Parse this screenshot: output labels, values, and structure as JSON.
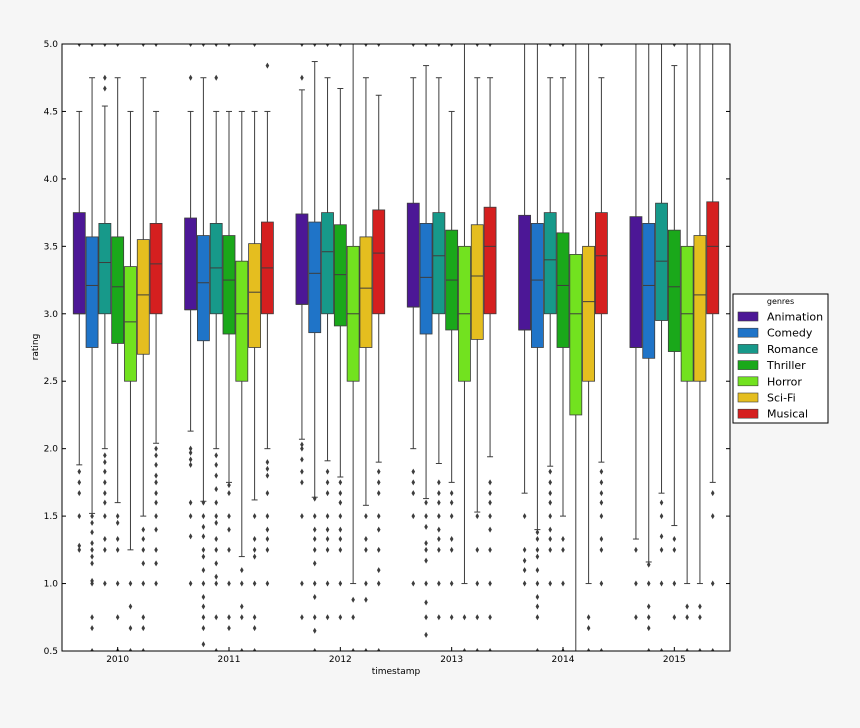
{
  "chart_data": {
    "type": "boxplot",
    "xlabel": "timestamp",
    "ylabel": "rating",
    "ylim": [
      0.5,
      5.0
    ],
    "yticks": [
      "0.5",
      "1.0",
      "1.5",
      "2.0",
      "2.5",
      "3.0",
      "3.5",
      "4.0",
      "4.5",
      "5.0"
    ],
    "categories": [
      "2010",
      "2011",
      "2012",
      "2013",
      "2014",
      "2015"
    ],
    "legend": {
      "title": "genres",
      "position": "right",
      "entries": [
        "Animation",
        "Comedy",
        "Romance",
        "Thriller",
        "Horror",
        "Sci-Fi",
        "Musical"
      ]
    },
    "colors": [
      "#4c1796",
      "#1f74c8",
      "#17998a",
      "#1aa81a",
      "#72e21f",
      "#e5be1f",
      "#d51f1f"
    ],
    "series": [
      {
        "name": "Animation",
        "boxes": [
          {
            "q1": 3.0,
            "median": 3.0,
            "q3": 3.75,
            "whislo": 1.88,
            "whishi": 4.5,
            "fliers": [
              1.83,
              1.75,
              1.67,
              1.5,
              1.28,
              1.25,
              5.0
            ]
          },
          {
            "q1": 3.03,
            "median": 3.03,
            "q3": 3.71,
            "whislo": 2.13,
            "whishi": 4.5,
            "fliers": [
              2.0,
              1.97,
              1.92,
              1.88,
              1.6,
              1.5,
              1.35,
              1.0,
              4.75,
              5.0
            ]
          },
          {
            "q1": 3.07,
            "median": 3.07,
            "q3": 3.74,
            "whislo": 2.07,
            "whishi": 4.66,
            "fliers": [
              2.03,
              2.0,
              1.92,
              1.83,
              1.75,
              1.5,
              1.0,
              0.75,
              4.75,
              5.0
            ]
          },
          {
            "q1": 3.05,
            "median": 3.05,
            "q3": 3.82,
            "whislo": 2.0,
            "whishi": 4.75,
            "fliers": [
              1.83,
              1.75,
              1.67,
              1.5,
              1.0,
              5.0
            ]
          },
          {
            "q1": 2.88,
            "median": 2.88,
            "q3": 3.73,
            "whislo": 1.67,
            "whishi": 5.0,
            "fliers": [
              1.5,
              1.25,
              1.17,
              1.1,
              1.0
            ]
          },
          {
            "q1": 2.75,
            "median": 2.75,
            "q3": 3.72,
            "whislo": 1.33,
            "whishi": 5.0,
            "fliers": [
              1.25,
              1.0,
              0.75
            ]
          }
        ]
      },
      {
        "name": "Comedy",
        "boxes": [
          {
            "q1": 2.75,
            "median": 3.21,
            "q3": 3.57,
            "whislo": 1.52,
            "whishi": 4.75,
            "fliers": [
              1.5,
              1.45,
              1.38,
              1.3,
              1.25,
              1.2,
              1.15,
              1.02,
              1.0,
              0.75,
              0.67,
              0.5,
              5.0
            ]
          },
          {
            "q1": 2.8,
            "median": 3.23,
            "q3": 3.58,
            "whislo": 1.61,
            "whishi": 4.75,
            "fliers": [
              1.6,
              1.5,
              1.42,
              1.35,
              1.25,
              1.2,
              1.1,
              1.0,
              0.9,
              0.83,
              0.75,
              0.67,
              0.55,
              5.0
            ]
          },
          {
            "q1": 2.86,
            "median": 3.3,
            "q3": 3.68,
            "whislo": 1.64,
            "whishi": 4.87,
            "fliers": [
              1.63,
              1.5,
              1.4,
              1.33,
              1.25,
              1.15,
              1.0,
              0.9,
              0.75,
              0.65,
              0.5,
              5.0
            ]
          },
          {
            "q1": 2.85,
            "median": 3.27,
            "q3": 3.67,
            "whislo": 1.63,
            "whishi": 4.84,
            "fliers": [
              1.6,
              1.5,
              1.42,
              1.3,
              1.25,
              1.17,
              1.0,
              0.86,
              0.75,
              0.62,
              5.0
            ]
          },
          {
            "q1": 2.75,
            "median": 3.25,
            "q3": 3.67,
            "whislo": 1.4,
            "whishi": 5.0,
            "fliers": [
              1.38,
              1.33,
              1.25,
              1.2,
              1.1,
              1.0,
              0.9,
              0.83,
              0.75,
              0.5
            ]
          },
          {
            "q1": 2.67,
            "median": 3.21,
            "q3": 3.67,
            "whislo": 1.16,
            "whishi": 5.0,
            "fliers": [
              1.14,
              1.0,
              0.83,
              0.75,
              0.67,
              0.5
            ]
          }
        ]
      },
      {
        "name": "Romance",
        "boxes": [
          {
            "q1": 3.0,
            "median": 3.38,
            "q3": 3.67,
            "whislo": 2.0,
            "whishi": 4.54,
            "fliers": [
              1.95,
              1.9,
              1.83,
              1.75,
              1.67,
              1.6,
              1.5,
              1.33,
              1.25,
              1.0,
              4.67,
              4.75,
              5.0
            ]
          },
          {
            "q1": 3.0,
            "median": 3.34,
            "q3": 3.67,
            "whislo": 2.0,
            "whishi": 4.5,
            "fliers": [
              1.95,
              1.88,
              1.8,
              1.7,
              1.6,
              1.5,
              1.45,
              1.33,
              1.25,
              1.15,
              1.05,
              1.0,
              0.75,
              0.5,
              4.75,
              5.0
            ]
          },
          {
            "q1": 3.0,
            "median": 3.46,
            "q3": 3.75,
            "whislo": 1.91,
            "whishi": 4.75,
            "fliers": [
              1.83,
              1.75,
              1.67,
              1.5,
              1.4,
              1.33,
              1.25,
              1.0,
              0.75,
              5.0
            ]
          },
          {
            "q1": 3.0,
            "median": 3.43,
            "q3": 3.75,
            "whislo": 1.89,
            "whishi": 4.75,
            "fliers": [
              1.75,
              1.67,
              1.6,
              1.5,
              1.4,
              1.33,
              1.25,
              1.0,
              0.75,
              5.0
            ]
          },
          {
            "q1": 3.0,
            "median": 3.4,
            "q3": 3.75,
            "whislo": 1.87,
            "whishi": 4.75,
            "fliers": [
              1.83,
              1.75,
              1.67,
              1.6,
              1.5,
              1.4,
              1.33,
              1.25,
              1.0,
              5.0
            ]
          },
          {
            "q1": 2.95,
            "median": 3.39,
            "q3": 3.82,
            "whislo": 1.67,
            "whishi": 5.0,
            "fliers": [
              1.6,
              1.5,
              1.35,
              1.25,
              1.0,
              0.5
            ]
          }
        ]
      },
      {
        "name": "Thriller",
        "boxes": [
          {
            "q1": 2.78,
            "median": 3.2,
            "q3": 3.57,
            "whislo": 1.6,
            "whishi": 4.75,
            "fliers": [
              1.5,
              1.45,
              1.33,
              1.25,
              1.0,
              0.75,
              0.5,
              5.0
            ]
          },
          {
            "q1": 2.85,
            "median": 3.25,
            "q3": 3.58,
            "whislo": 1.75,
            "whishi": 4.5,
            "fliers": [
              1.73,
              1.67,
              1.5,
              1.4,
              1.25,
              1.0,
              0.75,
              0.67,
              5.0
            ]
          },
          {
            "q1": 2.91,
            "median": 3.29,
            "q3": 3.66,
            "whislo": 1.79,
            "whishi": 4.67,
            "fliers": [
              1.75,
              1.67,
              1.6,
              1.5,
              1.4,
              1.33,
              1.25,
              1.0,
              0.75,
              5.0
            ]
          },
          {
            "q1": 2.88,
            "median": 3.25,
            "q3": 3.62,
            "whislo": 1.75,
            "whishi": 4.5,
            "fliers": [
              1.67,
              1.6,
              1.5,
              1.33,
              1.25,
              1.0,
              0.75,
              5.0
            ]
          },
          {
            "q1": 2.75,
            "median": 3.21,
            "q3": 3.6,
            "whislo": 1.5,
            "whishi": 4.75,
            "fliers": [
              1.33,
              1.25,
              1.0,
              0.5,
              5.0
            ]
          },
          {
            "q1": 2.72,
            "median": 3.2,
            "q3": 3.62,
            "whislo": 1.43,
            "whishi": 4.84,
            "fliers": [
              1.33,
              1.25,
              1.0,
              0.75,
              5.0
            ]
          }
        ]
      },
      {
        "name": "Horror",
        "boxes": [
          {
            "q1": 2.5,
            "median": 2.94,
            "q3": 3.35,
            "whislo": 1.25,
            "whishi": 4.5,
            "fliers": [
              1.0,
              0.83,
              0.67,
              0.5
            ]
          },
          {
            "q1": 2.5,
            "median": 3.0,
            "q3": 3.39,
            "whislo": 1.2,
            "whishi": 4.5,
            "fliers": [
              1.1,
              1.0,
              0.83,
              0.75,
              0.5
            ]
          },
          {
            "q1": 2.5,
            "median": 3.0,
            "q3": 3.5,
            "whislo": 1.0,
            "whishi": 5.0,
            "fliers": [
              0.88,
              0.75,
              0.5
            ]
          },
          {
            "q1": 2.5,
            "median": 3.0,
            "q3": 3.5,
            "whislo": 1.0,
            "whishi": 5.0,
            "fliers": [
              0.75,
              0.5
            ]
          },
          {
            "q1": 2.25,
            "median": 3.0,
            "q3": 3.44,
            "whislo": 0.5,
            "whishi": 5.0,
            "fliers": []
          },
          {
            "q1": 2.5,
            "median": 3.0,
            "q3": 3.5,
            "whislo": 1.0,
            "whishi": 5.0,
            "fliers": [
              0.83,
              0.75,
              0.5
            ]
          }
        ]
      },
      {
        "name": "Sci-Fi",
        "boxes": [
          {
            "q1": 2.7,
            "median": 3.14,
            "q3": 3.55,
            "whislo": 1.5,
            "whishi": 4.75,
            "fliers": [
              1.4,
              1.33,
              1.25,
              1.15,
              1.0,
              0.75,
              0.67,
              0.5,
              5.0
            ]
          },
          {
            "q1": 2.75,
            "median": 3.16,
            "q3": 3.52,
            "whislo": 1.62,
            "whishi": 4.5,
            "fliers": [
              1.5,
              1.33,
              1.25,
              1.2,
              1.0,
              0.75,
              0.67,
              0.5,
              5.0
            ]
          },
          {
            "q1": 2.75,
            "median": 3.19,
            "q3": 3.57,
            "whislo": 1.58,
            "whishi": 4.75,
            "fliers": [
              1.5,
              1.33,
              1.25,
              1.0,
              0.88,
              0.5,
              5.0
            ]
          },
          {
            "q1": 2.81,
            "median": 3.28,
            "q3": 3.66,
            "whislo": 1.53,
            "whishi": 4.75,
            "fliers": [
              1.5,
              1.25,
              1.0,
              0.75,
              0.5,
              5.0
            ]
          },
          {
            "q1": 2.5,
            "median": 3.09,
            "q3": 3.5,
            "whislo": 1.0,
            "whishi": 5.0,
            "fliers": [
              0.75,
              0.67,
              0.5
            ]
          },
          {
            "q1": 2.5,
            "median": 3.14,
            "q3": 3.58,
            "whislo": 1.0,
            "whishi": 5.0,
            "fliers": [
              0.83,
              0.75,
              0.5
            ]
          }
        ]
      },
      {
        "name": "Musical",
        "boxes": [
          {
            "q1": 3.0,
            "median": 3.37,
            "q3": 3.67,
            "whislo": 2.04,
            "whishi": 4.5,
            "fliers": [
              2.0,
              1.95,
              1.88,
              1.8,
              1.75,
              1.67,
              1.6,
              1.5,
              1.4,
              1.25,
              1.15,
              1.0,
              5.0
            ]
          },
          {
            "q1": 3.0,
            "median": 3.34,
            "q3": 3.68,
            "whislo": 2.0,
            "whishi": 4.5,
            "fliers": [
              1.9,
              1.85,
              1.8,
              1.67,
              1.5,
              1.4,
              1.33,
              1.25,
              1.0,
              4.84
            ]
          },
          {
            "q1": 3.0,
            "median": 3.45,
            "q3": 3.77,
            "whislo": 1.9,
            "whishi": 4.62,
            "fliers": [
              1.83,
              1.75,
              1.67,
              1.5,
              1.4,
              1.25,
              1.1,
              1.0,
              0.5,
              5.0
            ]
          },
          {
            "q1": 3.0,
            "median": 3.5,
            "q3": 3.79,
            "whislo": 1.94,
            "whishi": 4.75,
            "fliers": [
              1.75,
              1.67,
              1.6,
              1.5,
              1.4,
              1.25,
              1.0,
              0.75,
              0.5,
              5.0
            ]
          },
          {
            "q1": 3.0,
            "median": 3.43,
            "q3": 3.75,
            "whislo": 1.9,
            "whishi": 4.75,
            "fliers": [
              1.83,
              1.75,
              1.67,
              1.6,
              1.5,
              1.33,
              1.25,
              1.0,
              0.5,
              5.0
            ]
          },
          {
            "q1": 3.0,
            "median": 3.5,
            "q3": 3.83,
            "whislo": 1.75,
            "whishi": 5.0,
            "fliers": [
              1.67,
              1.5,
              1.0,
              0.5
            ]
          }
        ]
      }
    ]
  }
}
